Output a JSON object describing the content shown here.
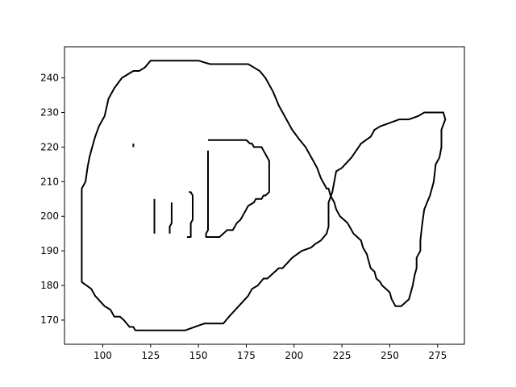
{
  "chart_data": {
    "type": "line",
    "title": "",
    "xlabel": "",
    "ylabel": "",
    "xlim": [
      80,
      289
    ],
    "ylim": [
      163,
      249
    ],
    "xticks": [
      100,
      125,
      150,
      175,
      200,
      225,
      250,
      275
    ],
    "yticks": [
      170,
      180,
      190,
      200,
      210,
      220,
      230,
      240
    ],
    "grid": false,
    "line_color": "#000000",
    "series": [
      {
        "points": [
          [
            89,
            208
          ],
          [
            89,
            181
          ],
          [
            94,
            179
          ],
          [
            96,
            177
          ],
          [
            101,
            174
          ],
          [
            104,
            173
          ],
          [
            106,
            171
          ],
          [
            109,
            171
          ],
          [
            111,
            170
          ],
          [
            114,
            168
          ],
          [
            116,
            168
          ],
          [
            117,
            167
          ],
          [
            140,
            167
          ],
          [
            143,
            167
          ],
          [
            153,
            169
          ],
          [
            160,
            169
          ],
          [
            163,
            169
          ],
          [
            166,
            171
          ],
          [
            171,
            174
          ],
          [
            176,
            177
          ],
          [
            178,
            179
          ],
          [
            181,
            180
          ],
          [
            184,
            182
          ],
          [
            186,
            182
          ],
          [
            192,
            185
          ],
          [
            194,
            185
          ],
          [
            199,
            188
          ],
          [
            204,
            190
          ],
          [
            209,
            191
          ],
          [
            211,
            192
          ],
          [
            214,
            193
          ],
          [
            217,
            195
          ],
          [
            218,
            197
          ],
          [
            218,
            200
          ],
          [
            218,
            204
          ],
          [
            220,
            207
          ],
          [
            222,
            213
          ],
          [
            225,
            214
          ],
          [
            230,
            217
          ],
          [
            235,
            221
          ],
          [
            240,
            223
          ],
          [
            242,
            225
          ],
          [
            245,
            226
          ],
          [
            250,
            227
          ],
          [
            255,
            228
          ],
          [
            260,
            228
          ],
          [
            265,
            229
          ],
          [
            268,
            230
          ],
          [
            278,
            230
          ],
          [
            279,
            228
          ],
          [
            277,
            225
          ],
          [
            277,
            220
          ],
          [
            276,
            217
          ],
          [
            274,
            215
          ],
          [
            273,
            210
          ],
          [
            271,
            206
          ],
          [
            268,
            202
          ],
          [
            267,
            198
          ],
          [
            266,
            193
          ],
          [
            266,
            190
          ],
          [
            264,
            188
          ],
          [
            264,
            185
          ],
          [
            263,
            183
          ],
          [
            262,
            180
          ],
          [
            261,
            178
          ],
          [
            260,
            176
          ],
          [
            258,
            175
          ],
          [
            256,
            174
          ],
          [
            253,
            174
          ],
          [
            251,
            176
          ],
          [
            250,
            178
          ],
          [
            248,
            179
          ],
          [
            246,
            180
          ],
          [
            245,
            181
          ],
          [
            243,
            182
          ],
          [
            242,
            184
          ],
          [
            240,
            185
          ],
          [
            239,
            187
          ],
          [
            238,
            189
          ],
          [
            236,
            191
          ],
          [
            235,
            193
          ],
          [
            233,
            194
          ],
          [
            231,
            195
          ],
          [
            230,
            196
          ],
          [
            229,
            197
          ],
          [
            228,
            198
          ],
          [
            226,
            199
          ],
          [
            224,
            200
          ],
          [
            222,
            202
          ],
          [
            221,
            204
          ],
          [
            219,
            206
          ],
          [
            218,
            208
          ],
          [
            217,
            208
          ],
          [
            214,
            211
          ],
          [
            212,
            214
          ],
          [
            208,
            218
          ],
          [
            206,
            220
          ],
          [
            203,
            222
          ],
          [
            199,
            225
          ],
          [
            196,
            228
          ],
          [
            192,
            232
          ],
          [
            189,
            236
          ],
          [
            185,
            240
          ],
          [
            182,
            242
          ],
          [
            179,
            243
          ],
          [
            176,
            244
          ],
          [
            173,
            244
          ],
          [
            170,
            244
          ],
          [
            160,
            244
          ],
          [
            156,
            244
          ],
          [
            150,
            245
          ],
          [
            125,
            245
          ],
          [
            122,
            243
          ],
          [
            119,
            242
          ],
          [
            116,
            242
          ],
          [
            110,
            240
          ],
          [
            106,
            237
          ],
          [
            103,
            234
          ],
          [
            101,
            229
          ],
          [
            98,
            226
          ],
          [
            96,
            223
          ],
          [
            95,
            221
          ],
          [
            94,
            219
          ],
          [
            93,
            217
          ],
          [
            92,
            214
          ],
          [
            91,
            210
          ],
          [
            89,
            208
          ]
        ]
      },
      {
        "points": [
          [
            116,
            220
          ],
          [
            116,
            221
          ]
        ]
      },
      {
        "points": [
          [
            127,
            195
          ],
          [
            127,
            205
          ]
        ]
      },
      {
        "points": [
          [
            135,
            195
          ],
          [
            135,
            197
          ],
          [
            136,
            198
          ],
          [
            136,
            204
          ]
        ]
      },
      {
        "points": [
          [
            144,
            194
          ],
          [
            146,
            194
          ],
          [
            146,
            198
          ],
          [
            147,
            199
          ],
          [
            147,
            206
          ],
          [
            146,
            207
          ],
          [
            145,
            207
          ]
        ]
      },
      {
        "points": [
          [
            155,
            219
          ],
          [
            155,
            196
          ],
          [
            154,
            195
          ],
          [
            154,
            194
          ],
          [
            161,
            194
          ],
          [
            163,
            195
          ],
          [
            165,
            196
          ],
          [
            168,
            196
          ],
          [
            169,
            197
          ],
          [
            170,
            198
          ],
          [
            172,
            199
          ],
          [
            173,
            200
          ],
          [
            174,
            201
          ],
          [
            176,
            203
          ],
          [
            179,
            204
          ],
          [
            180,
            205
          ],
          [
            183,
            205
          ],
          [
            184,
            206
          ],
          [
            185,
            206
          ],
          [
            187,
            207
          ],
          [
            187,
            216
          ],
          [
            185,
            218
          ],
          [
            184,
            219
          ],
          [
            183,
            220
          ],
          [
            179,
            220
          ],
          [
            178,
            221
          ],
          [
            177,
            221
          ],
          [
            175,
            222
          ],
          [
            155,
            222
          ]
        ]
      }
    ]
  }
}
